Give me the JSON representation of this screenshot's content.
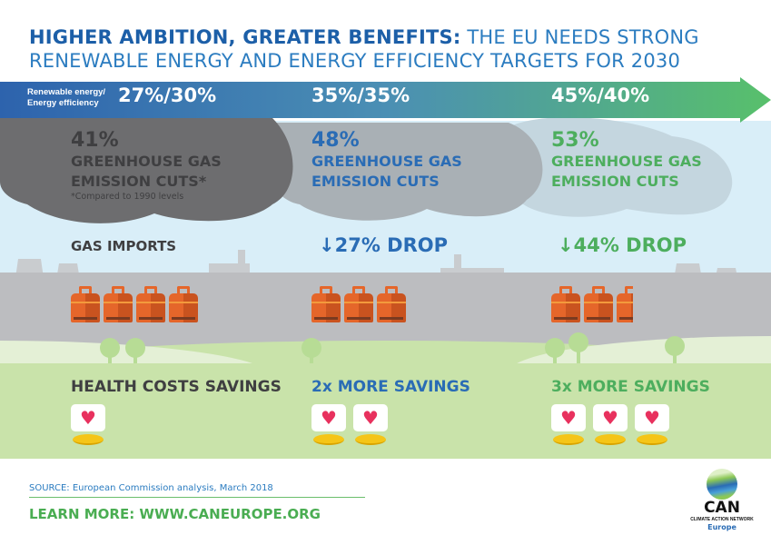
{
  "title": {
    "bold": "HIGHER AMBITION, GREATER BENEFITS:",
    "line1_rest": " THE EU NEEDS STRONG",
    "line2": "RENEWABLE ENERGY AND ENERGY EFFICIENCY TARGETS FOR 2030"
  },
  "band_label": {
    "line1": "Renewable energy/",
    "line2": "Energy efficiency"
  },
  "colors": {
    "scenario1": "#4a4a4c",
    "scenario2": "#2a6cb5",
    "scenario3": "#4dae5e",
    "title": "#2b7cc0"
  },
  "scenarios": [
    {
      "target": "27%/30%",
      "ghg_pct": "41%",
      "ghg_line1": "GREENHOUSE GAS",
      "ghg_line2": "EMISSION CUTS*",
      "note": "*Compared to 1990 levels",
      "gas": "GAS IMPORTS",
      "savings": "HEALTH COSTS SAVINGS",
      "canisters": 4,
      "hearts": 1
    },
    {
      "target": "35%/35%",
      "ghg_pct": "48%",
      "ghg_line1": "GREENHOUSE GAS",
      "ghg_line2": "EMISSION CUTS",
      "gas": "27% DROP",
      "savings": "2x MORE SAVINGS",
      "canisters": 3,
      "hearts": 2
    },
    {
      "target": "45%/40%",
      "ghg_pct": "53%",
      "ghg_line1": "GREENHOUSE GAS",
      "ghg_line2": "EMISSION CUTS",
      "gas": "44% DROP",
      "savings": "3x MORE SAVINGS",
      "canisters": 2.5,
      "hearts": 3
    }
  ],
  "footer": {
    "source": "SOURCE: European Commission analysis, March 2018",
    "learn_more": "LEARN MORE: WWW.CANEUROPE.ORG"
  },
  "logo": {
    "name": "CAN",
    "tagline": "CLIMATE ACTION NETWORK",
    "region": "Europe"
  }
}
